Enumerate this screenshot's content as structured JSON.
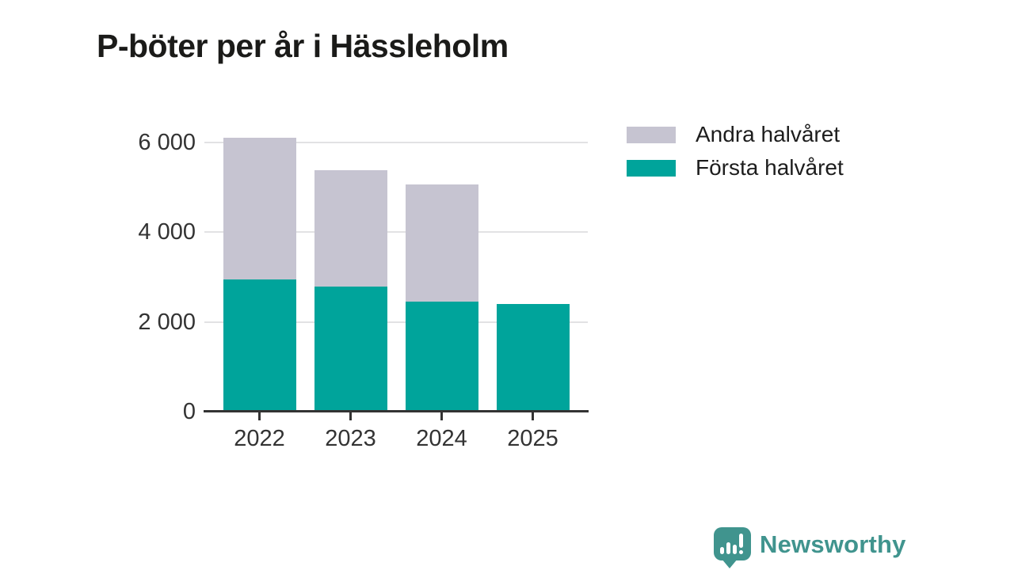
{
  "title": "P-böter per år i Hässleholm",
  "chart_data": {
    "type": "bar",
    "stacked": true,
    "title": "P-böter per år i Hässleholm",
    "xlabel": "",
    "ylabel": "",
    "categories": [
      "2022",
      "2023",
      "2024",
      "2025"
    ],
    "series": [
      {
        "key": "forsta",
        "name": "Första halvåret",
        "color": "#00a49b",
        "values": [
          2950,
          2790,
          2450,
          2400
        ]
      },
      {
        "key": "andra",
        "name": "Andra halvåret",
        "color": "#c6c4d1",
        "values": [
          3160,
          2590,
          2620,
          0
        ]
      }
    ],
    "totals": [
      6110,
      5380,
      5070,
      2400
    ],
    "ylim": [
      0,
      6000
    ],
    "y_ticks": [
      {
        "value": 0,
        "label": "0"
      },
      {
        "value": 2000,
        "label": "2 000"
      },
      {
        "value": 4000,
        "label": "4 000"
      },
      {
        "value": 6000,
        "label": "6 000"
      }
    ],
    "grid": true,
    "legend_position": "top-right"
  },
  "legend": {
    "items": [
      {
        "key": "andra",
        "label": "Andra halvåret",
        "color": "#c6c4d1"
      },
      {
        "key": "forsta",
        "label": "Första halvåret",
        "color": "#00a49b"
      }
    ]
  },
  "branding": {
    "logo_text": "Newsworthy",
    "brand_color": "#40948e",
    "icon": "chart-speech-bubble-icon"
  },
  "colors": {
    "accent_teal": "#00a49b",
    "secondary_gray": "#c6c4d1",
    "axis_text": "#333333",
    "title_text": "#1b1b19",
    "gridline": "#e2e2e4"
  }
}
